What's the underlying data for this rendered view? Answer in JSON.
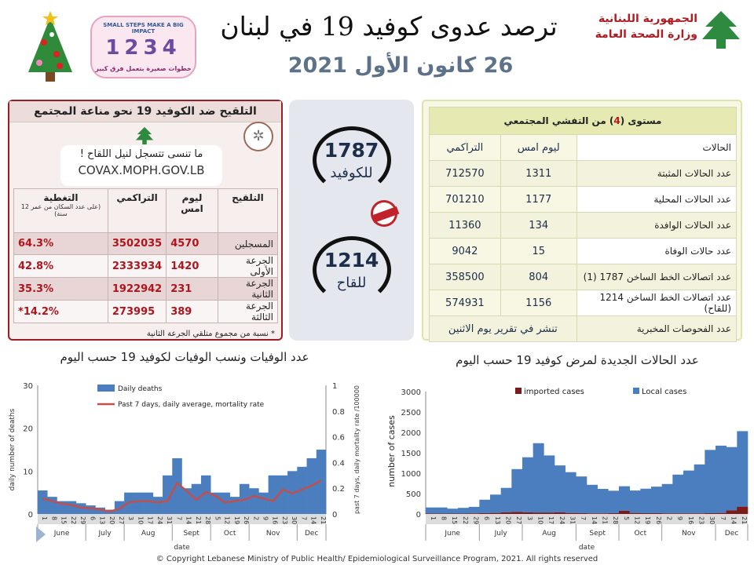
{
  "header": {
    "title": "ترصد عدوى كوفيد 19 في لبنان",
    "date": "26 كانون الأول 2021",
    "moph_line1": "الجمهورية اللبنانية",
    "moph_line2": "وزارة الصحة العامة",
    "impact_logo": {
      "top": "SMALL STEPS MAKE A BIG IMPACT",
      "numbers": "1234",
      "bottom": "خطوات صغيرة بتعمل فرق كبير"
    }
  },
  "vaccination": {
    "title": "التلقيح ضد الكوفيد 19  نحو مناعة المجتمع",
    "register_text": "ما تنسى تتسجل لنيل اللقاح !",
    "register_url": "COVAX.MOPH.GOV.LB",
    "headers": {
      "vaccine": "التلقيح",
      "yesterday": "ليوم امس",
      "cumulative": "التراكمي",
      "coverage": "التغطية",
      "coverage_note": "(على عدد السكان من عمر 12 سنة)"
    },
    "rows": [
      {
        "label": "المسجلين",
        "yesterday": "4570",
        "cumulative": "3502035",
        "coverage": "64.3%"
      },
      {
        "label": "الجرعة الأولى",
        "yesterday": "1420",
        "cumulative": "2333934",
        "coverage": "42.8%"
      },
      {
        "label": "الجرعة الثانية",
        "yesterday": "231",
        "cumulative": "1922942",
        "coverage": "35.3%"
      },
      {
        "label": "الجرعة الثالثة",
        "yesterday": "389",
        "cumulative": "273995",
        "coverage": "14.2%*"
      }
    ],
    "footnote": "* نسبة من مجموع متلقي الجرعة الثانية"
  },
  "hotlines": [
    {
      "number": "1787",
      "label": "للكوفيد"
    },
    {
      "number": "1214",
      "label": "للقاح"
    }
  ],
  "epi": {
    "title_pre": "مستوى (",
    "level": "4",
    "title_post": ") من التفشي المجتمعي",
    "headers": {
      "cases": "الحالات",
      "yesterday": "ليوم امس",
      "cumulative": "التراكمي"
    },
    "rows": [
      {
        "label": "عدد الحالات المثبتة",
        "yesterday": "1311",
        "cumulative": "712570"
      },
      {
        "label": "عدد الحالات المحلية",
        "yesterday": "1177",
        "cumulative": "701210"
      },
      {
        "label": "عدد الحالات الوافدة",
        "yesterday": "134",
        "cumulative": "11360"
      },
      {
        "label": "عدد حالات الوفاة",
        "yesterday": "15",
        "cumulative": "9042"
      },
      {
        "label": "عدد اتصالات الخط الساخن 1787 (1)",
        "yesterday": "804",
        "cumulative": "358500"
      },
      {
        "label": "عدد اتصالات الخط الساخن 1214 (للقاح)",
        "yesterday": "1156",
        "cumulative": "574931"
      }
    ],
    "tests": {
      "label": "عدد الفحوصات المخبرية",
      "value": "تنشر في تقرير يوم الاثنين"
    }
  },
  "chart_data": [
    {
      "type": "bar+line",
      "title": "عدد الوفيات ونسب الوفيات لكوفيد 19 حسب اليوم",
      "xlabel": "date",
      "ylabel": "daily number of deaths",
      "y2label": "past 7 days, daily mortality rate /100000",
      "ylim": [
        0,
        30
      ],
      "yticks": [
        0,
        10,
        20,
        30
      ],
      "y2lim": [
        0,
        1
      ],
      "y2ticks": [
        0,
        0.2,
        0.4,
        0.6,
        0.8,
        1
      ],
      "x": [
        "1",
        "8",
        "15",
        "22",
        "29",
        "6",
        "13",
        "20",
        "27",
        "3",
        "10",
        "17",
        "24",
        "31",
        "7",
        "14",
        "21",
        "28",
        "5",
        "12",
        "19",
        "26",
        "2",
        "9",
        "16",
        "23",
        "30",
        "7",
        "14",
        "21"
      ],
      "months": [
        "June",
        "July",
        "Aug",
        "Sept",
        "Oct",
        "Nov",
        "Dec"
      ],
      "month_weeks": [
        5,
        4,
        5,
        4,
        4,
        5,
        3
      ],
      "series": [
        {
          "name": "Daily deaths",
          "color": "#4a7ebf",
          "values": [
            5.5,
            4,
            3,
            3,
            2.5,
            2,
            1.5,
            1,
            3,
            5,
            5,
            5,
            4,
            9,
            13,
            6,
            7,
            9,
            5,
            5,
            4,
            7,
            6,
            5,
            9,
            9,
            10,
            11,
            13,
            15
          ]
        },
        {
          "name": "Past 7 days, daily average, mortality rate",
          "color": "#c0504d",
          "axis": "right",
          "values": [
            0.12,
            0.1,
            0.08,
            0.07,
            0.05,
            0.045,
            0.035,
            0.02,
            0.04,
            0.09,
            0.1,
            0.1,
            0.09,
            0.1,
            0.24,
            0.18,
            0.11,
            0.17,
            0.14,
            0.09,
            0.1,
            0.11,
            0.14,
            0.12,
            0.1,
            0.19,
            0.16,
            0.19,
            0.22,
            0.26
          ]
        }
      ],
      "legend": "top"
    },
    {
      "type": "stacked-bar",
      "title": "عدد الحالات الجديدة لمرض كوفيد 19 حسب اليوم",
      "xlabel": "date",
      "ylabel": "number of cases",
      "ylim": [
        0,
        3000
      ],
      "yticks": [
        0,
        500,
        1000,
        1500,
        2000,
        2500,
        3000
      ],
      "x": [
        "1",
        "8",
        "15",
        "22",
        "29",
        "6",
        "13",
        "20",
        "27",
        "3",
        "10",
        "17",
        "24",
        "31",
        "7",
        "14",
        "21",
        "28",
        "5",
        "12",
        "19",
        "26",
        "2",
        "9",
        "16",
        "23",
        "30",
        "7",
        "14",
        "21"
      ],
      "months": [
        "June",
        "July",
        "Aug",
        "Sept",
        "Oct",
        "Nov",
        "Dec"
      ],
      "month_weeks": [
        5,
        4,
        5,
        4,
        4,
        5,
        3
      ],
      "series": [
        {
          "name": "imported cases",
          "color": "#7b1c1c",
          "values": [
            10,
            10,
            10,
            10,
            15,
            20,
            25,
            40,
            50,
            40,
            35,
            35,
            40,
            25,
            20,
            15,
            15,
            20,
            80,
            25,
            20,
            20,
            15,
            15,
            15,
            15,
            20,
            25,
            90,
            180
          ]
        },
        {
          "name": "Local cases",
          "color": "#4a7ebf",
          "values": [
            150,
            150,
            120,
            140,
            160,
            330,
            450,
            600,
            1050,
            1350,
            1700,
            1400,
            1150,
            1000,
            900,
            700,
            600,
            550,
            600,
            550,
            600,
            650,
            720,
            950,
            1050,
            1200,
            1550,
            1650,
            1550,
            1850
          ]
        }
      ],
      "legend": "top"
    }
  ],
  "footer": "© Copyright Lebanese Ministry of Public Health/ Epidemiological Surveillance Program, 2021. All rights reserved"
}
